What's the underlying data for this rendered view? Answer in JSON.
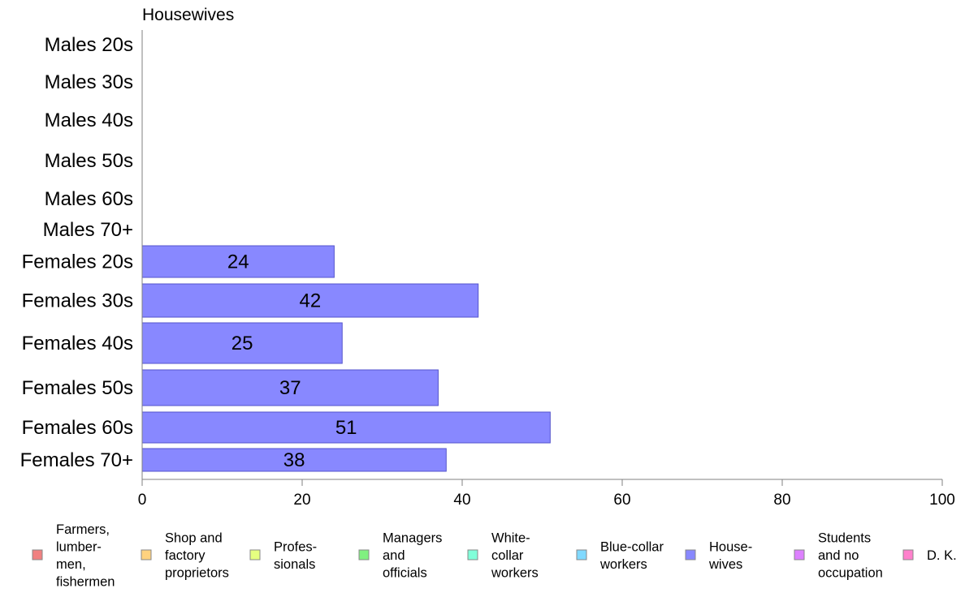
{
  "chart_data": {
    "type": "bar",
    "orientation": "horizontal",
    "title": "Housewives",
    "categories": [
      "Males 20s",
      "Males 30s",
      "Males 40s",
      "Males 50s",
      "Males 60s",
      "Males 70+",
      "Females 20s",
      "Females 30s",
      "Females 40s",
      "Females 50s",
      "Females 60s",
      "Females 70+"
    ],
    "values": [
      0,
      0,
      0,
      0,
      0,
      0,
      24,
      42,
      25,
      37,
      51,
      38
    ],
    "xlim": [
      0,
      100
    ],
    "xticks": [
      "0",
      "20",
      "40",
      "60",
      "80",
      "100"
    ],
    "bar_color": "#8888ff",
    "bar_edge_color": "#5555cc",
    "grid": false,
    "legend_placement": "bottom",
    "legend": [
      {
        "lines": [
          "Farmers,",
          "lumber-",
          "men,",
          "fishermen"
        ],
        "color": "#f08080"
      },
      {
        "lines": [
          "Shop and",
          "factory",
          "proprietors"
        ],
        "color": "#ffd27f"
      },
      {
        "lines": [
          "Profes-",
          "sionals"
        ],
        "color": "#e6ff80"
      },
      {
        "lines": [
          "Managers",
          "and",
          "officials"
        ],
        "color": "#80f080"
      },
      {
        "lines": [
          "White-",
          "collar",
          "workers"
        ],
        "color": "#80ffd9"
      },
      {
        "lines": [
          "Blue-collar",
          "workers"
        ],
        "color": "#80d9ff"
      },
      {
        "lines": [
          "House-",
          "wives"
        ],
        "color": "#8888ff"
      },
      {
        "lines": [
          "Students",
          "and no",
          "occupation"
        ],
        "color": "#dd80ff"
      },
      {
        "lines": [
          "D. K."
        ],
        "color": "#ff80cc"
      }
    ]
  }
}
